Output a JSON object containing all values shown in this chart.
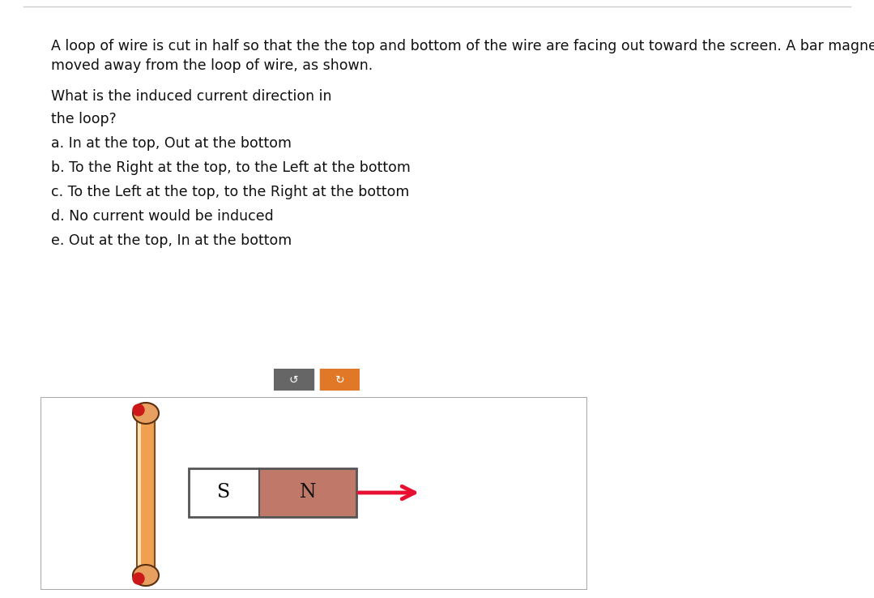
{
  "bg_color": "#ffffff",
  "text_color": "#111111",
  "line1": "A loop of wire is cut in half so that the the top and bottom of the wire are facing out toward the screen. A bar magnet is",
  "line2": "moved away from the loop of wire, as shown.",
  "line3": "What is the induced current direction in",
  "line4": "the loop?",
  "answers": [
    "a. In at the top, Out at the bottom",
    "b. To the Right at the top, to the Left at the bottom",
    "c. To the Left at the top, to the Right at the bottom",
    "d. No current would be induced",
    "e. Out at the top, In at the bottom"
  ],
  "font_size": 12.5,
  "wire_color": "#f0a050",
  "wire_highlight": "#fce0b0",
  "wire_border": "#7a5020",
  "wire_end_color": "#e8a060",
  "wire_end_border": "#5a3010",
  "dot_color": "#cc1818",
  "s_fill": "#ffffff",
  "n_fill": "#c07868",
  "magnet_border": "#555555",
  "arrow_color": "#e81030",
  "btn_gray": "#666666",
  "btn_orange": "#e07828"
}
